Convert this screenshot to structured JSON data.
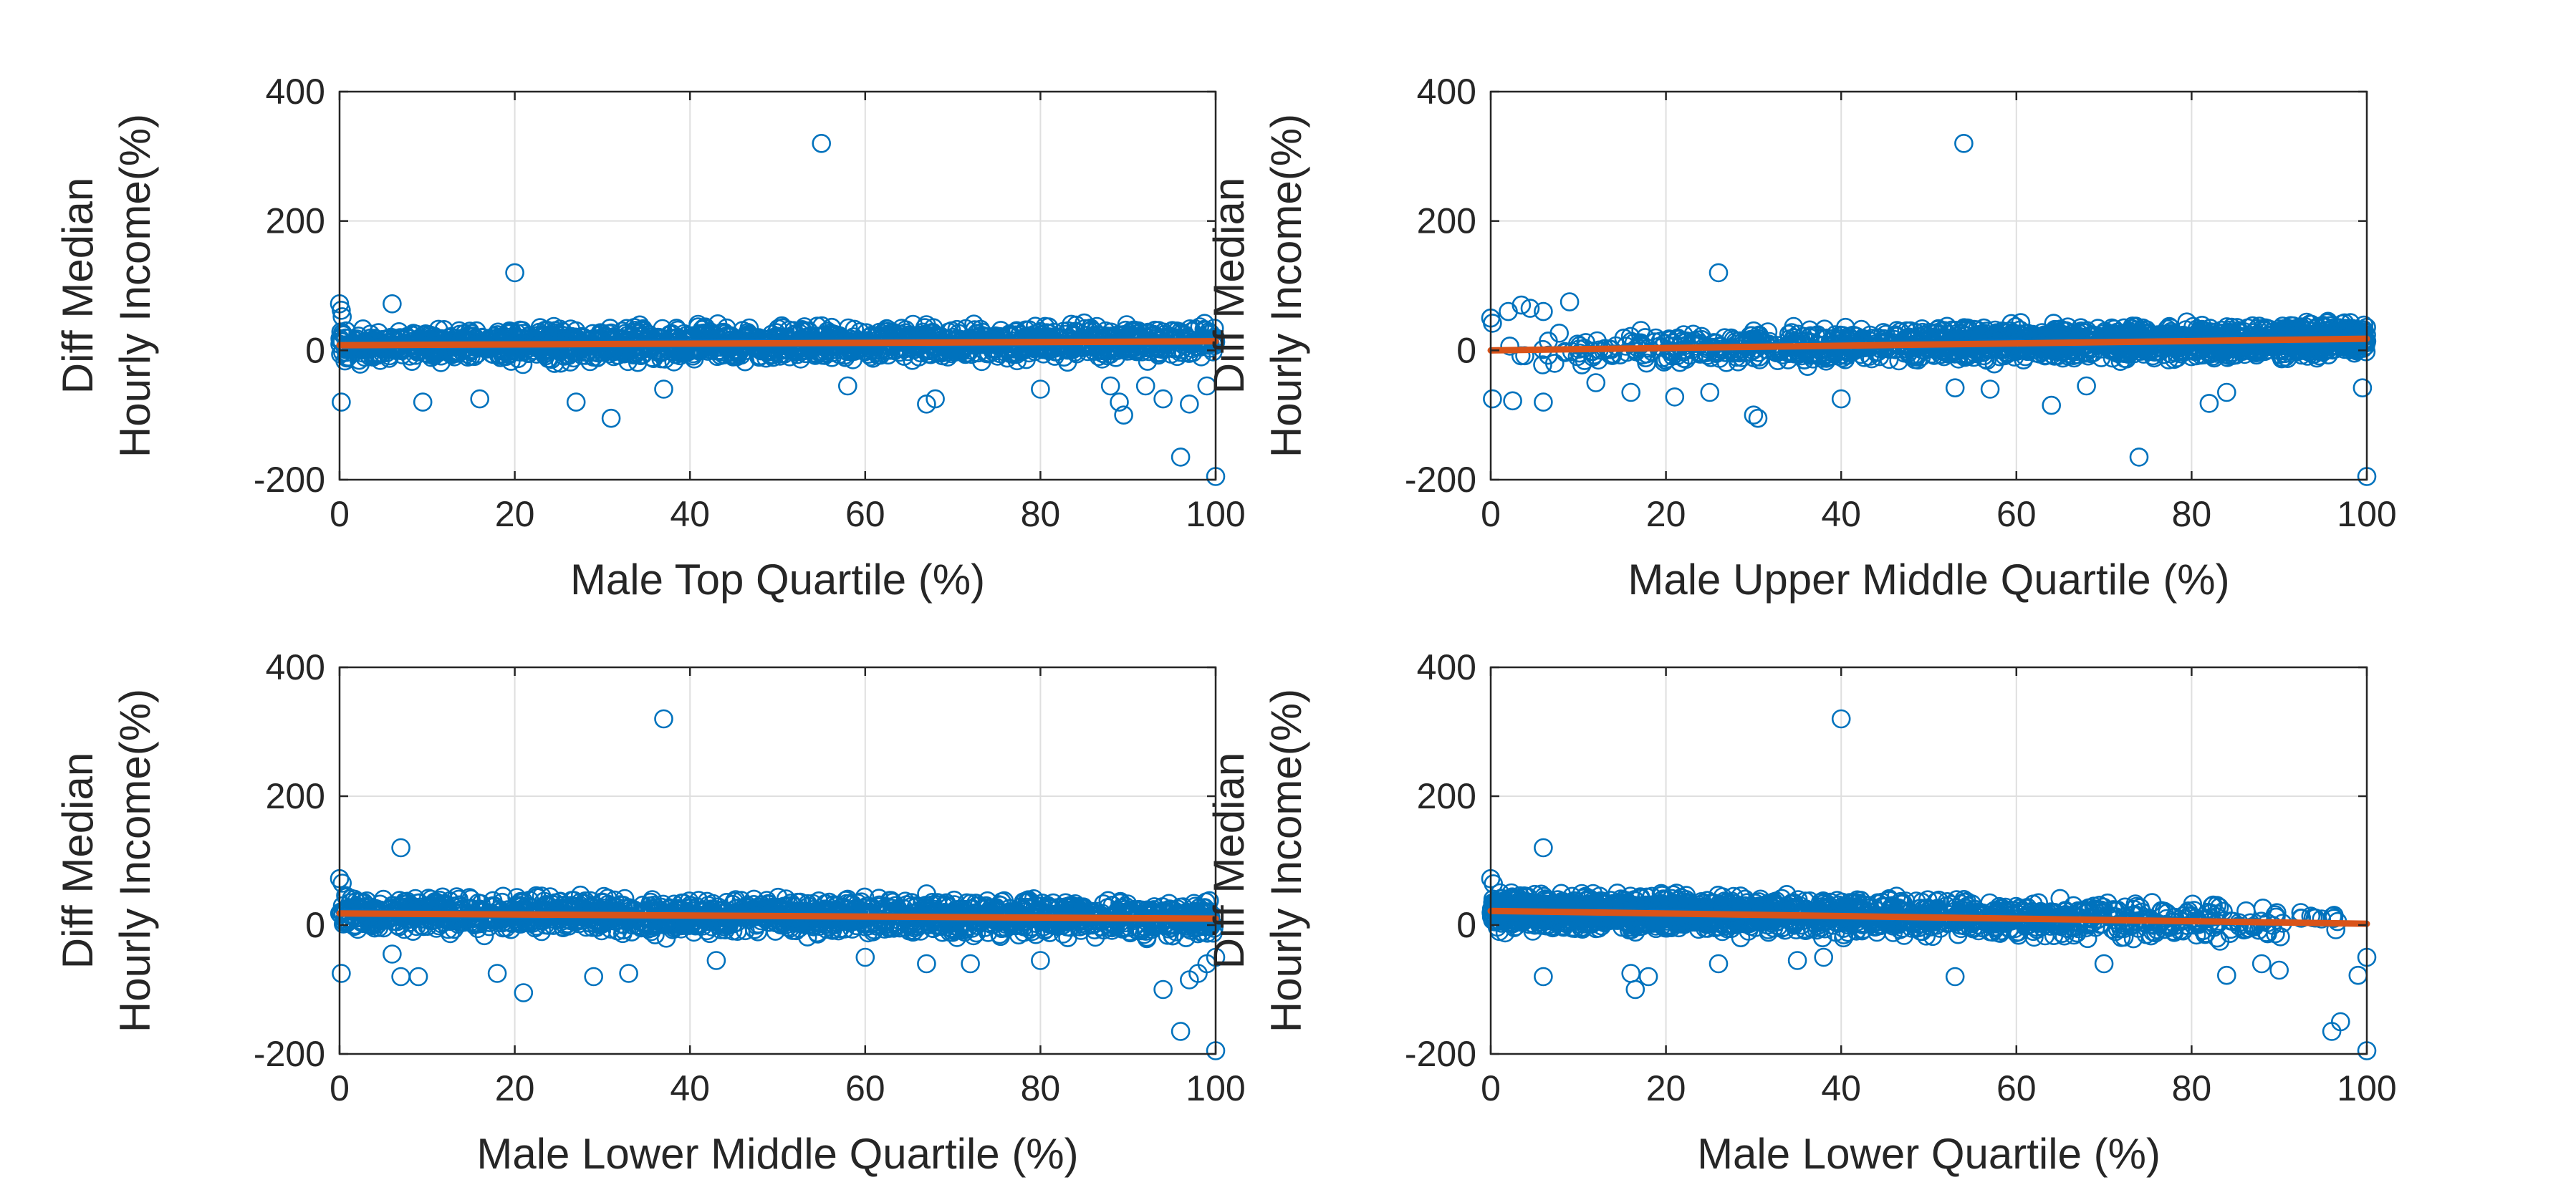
{
  "figure": {
    "marker_color": "#0072BD",
    "fit_color": "#D95319"
  },
  "chart_data": [
    {
      "type": "scatter",
      "xlabel": "Male Top Quartile (%)",
      "ylabel": [
        "Diff Median",
        "Hourly Income(%)"
      ],
      "xlim": [
        0,
        100
      ],
      "ylim": [
        -200,
        400
      ],
      "xticks": [
        "0",
        "20",
        "40",
        "60",
        "80",
        "100"
      ],
      "yticks": [
        "-200",
        "0",
        "200",
        "400"
      ],
      "grid": true,
      "density": "uniform",
      "bulk_range": [
        -25,
        45
      ],
      "outliers": [
        [
          55,
          320
        ],
        [
          20,
          120
        ],
        [
          0,
          72
        ],
        [
          0.2,
          62
        ],
        [
          0.3,
          52
        ],
        [
          6,
          72
        ],
        [
          0.2,
          -80
        ],
        [
          9.5,
          -80
        ],
        [
          16,
          -75
        ],
        [
          27,
          -80
        ],
        [
          31,
          -105
        ],
        [
          37,
          -60
        ],
        [
          58,
          -55
        ],
        [
          67,
          -83
        ],
        [
          68,
          -75
        ],
        [
          80,
          -60
        ],
        [
          88,
          -55
        ],
        [
          89,
          -80
        ],
        [
          89.5,
          -100
        ],
        [
          92,
          -55
        ],
        [
          94,
          -75
        ],
        [
          96,
          -165
        ],
        [
          97,
          -83
        ],
        [
          99,
          -55
        ],
        [
          100,
          -195
        ]
      ],
      "fit": {
        "x": [
          0,
          100
        ],
        "y": [
          8,
          14
        ]
      }
    },
    {
      "type": "scatter",
      "xlabel": "Male Upper Middle Quartile (%)",
      "ylabel": [
        "Diff Median",
        "Hourly Income(%)"
      ],
      "xlim": [
        0,
        100
      ],
      "ylim": [
        -200,
        400
      ],
      "xticks": [
        "0",
        "20",
        "40",
        "60",
        "80",
        "100"
      ],
      "yticks": [
        "-200",
        "0",
        "200",
        "400"
      ],
      "grid": true,
      "density": "right",
      "bulk_range": [
        -25,
        45
      ],
      "outliers": [
        [
          54,
          320
        ],
        [
          26,
          120
        ],
        [
          0,
          50
        ],
        [
          0.2,
          42
        ],
        [
          2,
          60
        ],
        [
          3.5,
          70
        ],
        [
          4.5,
          65
        ],
        [
          6,
          60
        ],
        [
          9,
          75
        ],
        [
          0.2,
          -75
        ],
        [
          2.5,
          -78
        ],
        [
          6,
          -80
        ],
        [
          12,
          -50
        ],
        [
          16,
          -65
        ],
        [
          21,
          -72
        ],
        [
          25,
          -65
        ],
        [
          30,
          -100
        ],
        [
          30.5,
          -105
        ],
        [
          40,
          -75
        ],
        [
          53,
          -58
        ],
        [
          57,
          -60
        ],
        [
          64,
          -85
        ],
        [
          68,
          -55
        ],
        [
          74,
          -165
        ],
        [
          82,
          -82
        ],
        [
          84,
          -65
        ],
        [
          100,
          -195
        ],
        [
          99.5,
          -58
        ]
      ],
      "fit": {
        "x": [
          0,
          100
        ],
        "y": [
          0,
          18
        ]
      }
    },
    {
      "type": "scatter",
      "xlabel": "Male Lower Middle Quartile (%)",
      "ylabel": [
        "Diff Median",
        "Hourly Income(%)"
      ],
      "xlim": [
        0,
        100
      ],
      "ylim": [
        -200,
        400
      ],
      "xticks": [
        "0",
        "20",
        "40",
        "60",
        "80",
        "100"
      ],
      "yticks": [
        "-200",
        "0",
        "200",
        "400"
      ],
      "grid": true,
      "density": "uniform",
      "bulk_range": [
        -25,
        50
      ],
      "outliers": [
        [
          37,
          320
        ],
        [
          7,
          120
        ],
        [
          0,
          72
        ],
        [
          0.3,
          65
        ],
        [
          0.2,
          -75
        ],
        [
          6,
          -45
        ],
        [
          7,
          -80
        ],
        [
          9,
          -80
        ],
        [
          18,
          -75
        ],
        [
          21,
          -105
        ],
        [
          29,
          -80
        ],
        [
          33,
          -75
        ],
        [
          43,
          -55
        ],
        [
          60,
          -50
        ],
        [
          67,
          -60
        ],
        [
          72,
          -60
        ],
        [
          80,
          -55
        ],
        [
          94,
          -100
        ],
        [
          96,
          -165
        ],
        [
          97,
          -85
        ],
        [
          98,
          -75
        ],
        [
          99,
          -60
        ],
        [
          100,
          -195
        ],
        [
          100,
          -50
        ]
      ],
      "fit": {
        "x": [
          0,
          100
        ],
        "y": [
          18,
          10
        ]
      }
    },
    {
      "type": "scatter",
      "xlabel": "Male Lower Quartile (%)",
      "ylabel": [
        "Diff Median",
        "Hourly Income(%)"
      ],
      "xlim": [
        0,
        100
      ],
      "ylim": [
        -200,
        400
      ],
      "xticks": [
        "0",
        "20",
        "40",
        "60",
        "80",
        "100"
      ],
      "yticks": [
        "-200",
        "0",
        "200",
        "400"
      ],
      "grid": true,
      "density": "left",
      "bulk_range": [
        -25,
        50
      ],
      "outliers": [
        [
          40,
          320
        ],
        [
          6,
          120
        ],
        [
          0,
          72
        ],
        [
          0.3,
          64
        ],
        [
          6,
          -80
        ],
        [
          16,
          -75
        ],
        [
          16.5,
          -100
        ],
        [
          18,
          -80
        ],
        [
          26,
          -60
        ],
        [
          35,
          -55
        ],
        [
          38,
          -50
        ],
        [
          53,
          -80
        ],
        [
          70,
          -60
        ],
        [
          84,
          -78
        ],
        [
          88,
          -60
        ],
        [
          90,
          -70
        ],
        [
          96,
          -165
        ],
        [
          97,
          -150
        ],
        [
          99,
          -78
        ],
        [
          100,
          -195
        ],
        [
          100,
          -50
        ]
      ],
      "fit": {
        "x": [
          0,
          100
        ],
        "y": [
          22,
          2
        ]
      }
    }
  ]
}
